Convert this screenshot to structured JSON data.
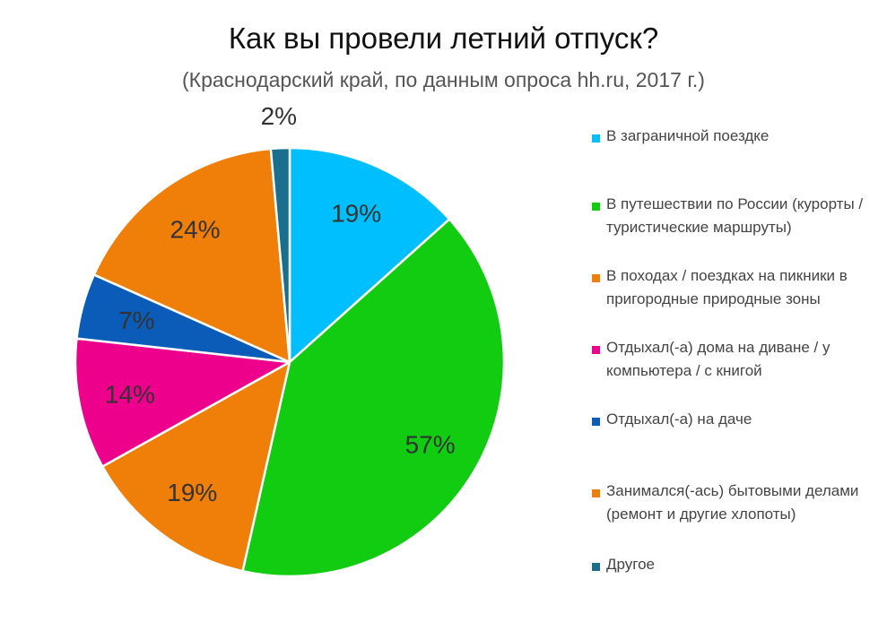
{
  "chart_data": {
    "type": "pie",
    "title": "Как вы провели летний отпуск?",
    "subtitle": "(Краснодарский край, по данным опроса hh.ru, 2017 г.)",
    "legend_position": "right",
    "slices": [
      {
        "label": "В заграничной поездке",
        "value": 19,
        "display": "19%",
        "color": "#00bfff"
      },
      {
        "label": "В путешествии по России (курорты / туристические маршруты)",
        "value": 57,
        "display": "57%",
        "color": "#11cc11"
      },
      {
        "label": "В походах / поездках на пикники в пригородные природные зоны",
        "value": 19,
        "display": "19%",
        "color": "#f07f09"
      },
      {
        "label": "Отдыхал(-а) дома на диване / у компьютера / с книгой",
        "value": 14,
        "display": "14%",
        "color": "#ec008c"
      },
      {
        "label": "Отдыхал(-а) на даче",
        "value": 7,
        "display": "7%",
        "color": "#0b5cb8"
      },
      {
        "label": "Занимался(-ась) бытовыми делами (ремонт и другие хлопоты)",
        "value": 24,
        "display": "24%",
        "color": "#f07f09"
      },
      {
        "label": "Другое",
        "value": 2,
        "display": "2%",
        "color": "#1a6e8e"
      }
    ]
  }
}
